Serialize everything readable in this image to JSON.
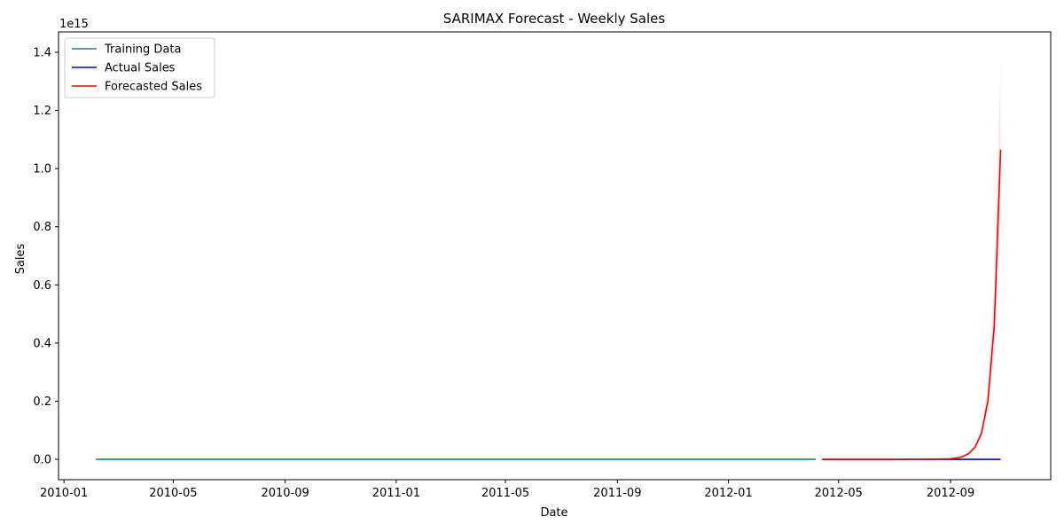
{
  "chart_data": {
    "type": "line",
    "title": "SARIMAX Forecast - Weekly Sales",
    "xlabel": "Date",
    "ylabel": "Sales",
    "y_offset_label": "1e15",
    "y_scale_factor": 1000000000000000.0,
    "xlim": [
      "2009-12-26",
      "2012-12-20"
    ],
    "ylim": [
      -0.07,
      1.47
    ],
    "x_ticks": [
      "2010-01",
      "2010-05",
      "2010-09",
      "2011-01",
      "2011-05",
      "2011-09",
      "2012-01",
      "2012-05",
      "2012-09"
    ],
    "y_ticks": [
      0.0,
      0.2,
      0.4,
      0.6,
      0.8,
      1.0,
      1.2,
      1.4
    ],
    "y_tick_labels": [
      "0.0",
      "0.2",
      "0.4",
      "0.6",
      "0.8",
      "1.0",
      "1.2",
      "1.4"
    ],
    "grid": false,
    "legend_position": "top-left",
    "series": [
      {
        "name": "Training Data",
        "color": "#1f77b4",
        "style": "line",
        "x": [
          "2010-02-05",
          "2012-04-06"
        ],
        "y": [
          0.0,
          0.0
        ]
      },
      {
        "name": "Actual Sales",
        "color": "#0000ff",
        "style": "line",
        "x": [
          "2012-04-13",
          "2012-10-26"
        ],
        "y": [
          0.0,
          0.0
        ]
      },
      {
        "name": "Forecasted Sales",
        "color": "#ff0000",
        "style": "line",
        "x": [
          "2012-04-13",
          "2012-06-01",
          "2012-07-06",
          "2012-08-03",
          "2012-08-17",
          "2012-08-31",
          "2012-09-07",
          "2012-09-14",
          "2012-09-21",
          "2012-09-28",
          "2012-10-05",
          "2012-10-12",
          "2012-10-19",
          "2012-10-26"
        ],
        "y": [
          0.0,
          0.0,
          0.0,
          0.0005,
          0.001,
          0.002,
          0.004,
          0.009,
          0.02,
          0.042,
          0.09,
          0.2,
          0.46,
          1.065
        ]
      }
    ],
    "confidence_band": {
      "color": "#ffc0cb",
      "x": [
        "2012-09-21",
        "2012-09-28",
        "2012-10-05",
        "2012-10-12",
        "2012-10-19",
        "2012-10-26"
      ],
      "lower": [
        0.018,
        0.036,
        0.075,
        0.165,
        0.37,
        0.85
      ],
      "upper": [
        0.022,
        0.05,
        0.11,
        0.25,
        0.6,
        1.375
      ]
    }
  }
}
